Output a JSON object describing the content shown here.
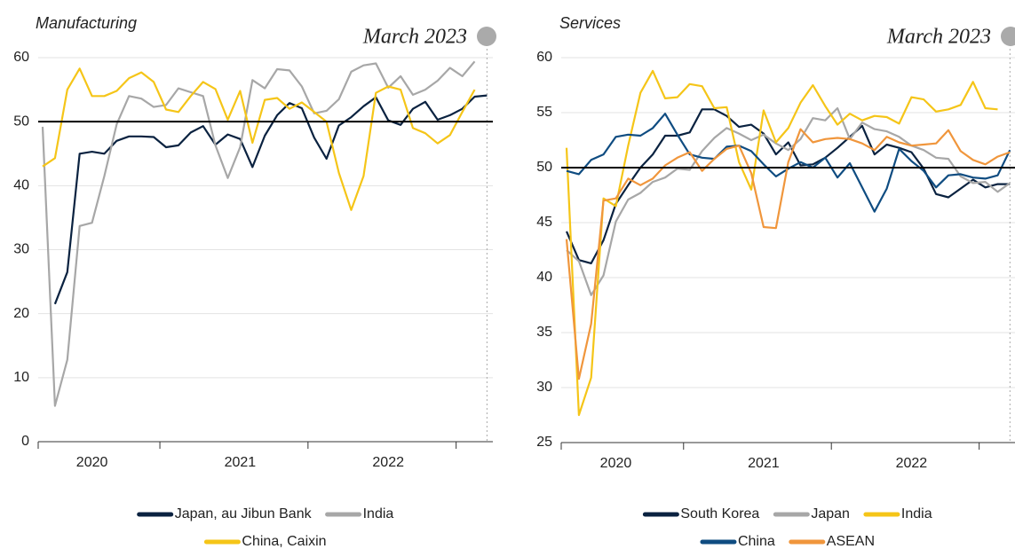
{
  "chart_data": [
    {
      "type": "line",
      "title": "Manufacturing",
      "annotation": "March 2023",
      "categories": [
        null,
        null,
        null,
        null,
        "2020",
        null,
        null,
        null,
        null,
        null,
        null,
        null,
        null,
        null,
        null,
        null,
        "2021",
        null,
        null,
        null,
        null,
        null,
        null,
        null,
        null,
        null,
        null,
        null,
        "2022",
        null,
        null,
        null,
        null,
        null,
        null,
        null,
        null
      ],
      "ylim": [
        0,
        60
      ],
      "yticks": [
        0,
        10,
        20,
        30,
        40,
        50,
        60
      ],
      "grid": true,
      "reference_line": 50,
      "series": [
        {
          "name": "Japan, au Jibun Bank",
          "color": "#0a2240",
          "values": [
            null,
            21.5,
            26.5,
            45,
            45.3,
            45,
            47,
            47.7,
            47.7,
            47.6,
            46,
            46.3,
            48.3,
            49.3,
            46.4,
            48,
            47.3,
            42.9,
            47.8,
            51,
            52.9,
            52.1,
            47.5,
            44.2,
            49.4,
            50.7,
            52.4,
            53.8,
            50.2,
            49.5,
            52,
            53.1,
            50.3,
            51,
            52,
            53.9,
            54.1
          ]
        },
        {
          "name": "India",
          "color": "#a7a7a7",
          "values": [
            49.2,
            5.6,
            12.8,
            33.7,
            34.2,
            41.5,
            49.6,
            54,
            53.6,
            52.3,
            52.6,
            55.2,
            54.6,
            54,
            46.3,
            41.2,
            46,
            56.5,
            55.2,
            58.2,
            58,
            55.5,
            51.3,
            51.7,
            53.5,
            57.8,
            58.8,
            59.1,
            55.3,
            57.1,
            54.2,
            55,
            56.4,
            58.4,
            57.1,
            59.4,
            null
          ]
        },
        {
          "name": "China, Caixin",
          "color": "#f5c518",
          "values": [
            43,
            44.3,
            55,
            58.3,
            54,
            54,
            54.8,
            56.8,
            57.7,
            56.2,
            51.9,
            51.5,
            54,
            56.2,
            55.1,
            50.3,
            54.8,
            46.7,
            53.4,
            53.7,
            52,
            53,
            51.5,
            50,
            42,
            36.2,
            41.5,
            54.5,
            55.5,
            55,
            49,
            48.2,
            46.6,
            47.9,
            51.5,
            55,
            null
          ]
        }
      ]
    },
    {
      "type": "line",
      "title": "Services",
      "annotation": "March 2023",
      "categories": [
        null,
        null,
        null,
        null,
        "2020",
        null,
        null,
        null,
        null,
        null,
        null,
        null,
        null,
        null,
        null,
        null,
        "2021",
        null,
        null,
        null,
        null,
        null,
        null,
        null,
        null,
        null,
        null,
        null,
        "2022",
        null,
        null,
        null,
        null,
        null,
        null,
        null,
        null
      ],
      "ylim": [
        25,
        60
      ],
      "yticks": [
        25,
        30,
        35,
        40,
        45,
        50,
        55,
        60
      ],
      "grid": true,
      "reference_line": 50,
      "series": [
        {
          "name": "South Korea",
          "color": "#0a2240",
          "values": [
            44.2,
            41.6,
            41.3,
            43.4,
            46.7,
            48.4,
            50,
            51.2,
            52.9,
            52.9,
            53.2,
            55.3,
            55.3,
            54.7,
            53.7,
            53.9,
            53.1,
            51.2,
            52.3,
            50.2,
            50.3,
            50.9,
            51.8,
            52.8,
            53.8,
            51.2,
            52.1,
            51.8,
            51.4,
            49.9,
            47.6,
            47.3,
            48.1,
            48.9,
            48.2,
            48.5,
            48.5
          ]
        },
        {
          "name": "Japan",
          "color": "#a7a7a7",
          "values": [
            42.5,
            41.5,
            38.4,
            40.2,
            45.1,
            47.1,
            47.7,
            48.7,
            49.1,
            49.9,
            49.8,
            51.5,
            52.7,
            53.6,
            53.1,
            52.5,
            53,
            52.2,
            51.6,
            52.6,
            54.5,
            54.3,
            55.4,
            52.6,
            54.1,
            53.5,
            53.3,
            52.8,
            52,
            51.6,
            50.9,
            50.8,
            49.2,
            48.6,
            48.7,
            47.8,
            48.6
          ]
        },
        {
          "name": "India",
          "color": "#f5c518",
          "values": [
            51.8,
            27.5,
            30.9,
            47.2,
            46.5,
            52,
            56.8,
            58.8,
            56.3,
            56.4,
            57.6,
            57.4,
            55.4,
            55.5,
            50.5,
            48,
            55.2,
            52.3,
            53.6,
            55.9,
            57.5,
            55.6,
            53.9,
            54.9,
            54.3,
            54.7,
            54.6,
            54,
            56.4,
            56.2,
            55.1,
            55.3,
            55.7,
            57.8,
            55.4,
            55.3,
            null
          ]
        },
        {
          "name": "China",
          "color": "#0f4c81",
          "values": [
            49.7,
            49.4,
            50.7,
            51.2,
            52.8,
            53,
            52.9,
            53.6,
            54.9,
            53,
            51.2,
            50.9,
            50.8,
            51.9,
            52,
            51.5,
            50.3,
            49.2,
            49.9,
            50.5,
            50,
            50.9,
            49.1,
            50.4,
            48.2,
            46,
            48.1,
            51.7,
            50.6,
            49.7,
            48.2,
            49.3,
            49.4,
            49.1,
            49,
            49.3,
            51.6
          ]
        },
        {
          "name": "ASEAN",
          "color": "#f0963c",
          "values": [
            43.5,
            30.8,
            35.8,
            47,
            47.2,
            49,
            48.4,
            49,
            50.2,
            50.9,
            51.4,
            49.7,
            50.8,
            51.7,
            52,
            49.5,
            44.6,
            44.5,
            50.5,
            53.5,
            52.3,
            52.6,
            52.7,
            52.6,
            52.2,
            51.6,
            52.8,
            52.3,
            52,
            52.1,
            52.2,
            53.4,
            51.5,
            50.7,
            50.3,
            51,
            51.4
          ]
        }
      ]
    }
  ]
}
